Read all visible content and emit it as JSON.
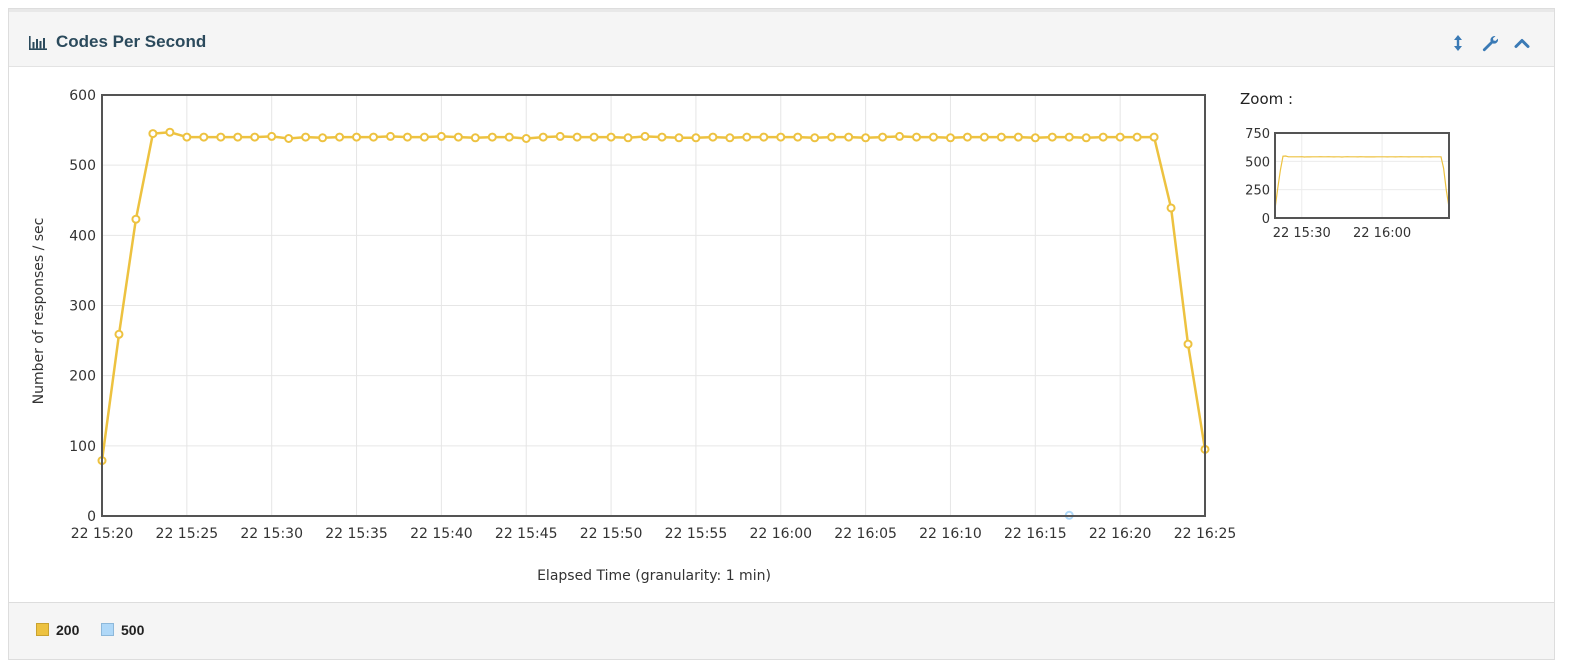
{
  "panel": {
    "title": "Codes Per Second",
    "tools": [
      {
        "name": "expand",
        "icon": "vertical-arrows-icon"
      },
      {
        "name": "settings",
        "icon": "wrench-icon"
      },
      {
        "name": "collapse",
        "icon": "chevron-up-icon"
      }
    ]
  },
  "zoom": {
    "label": "Zoom :",
    "y_ticks": [
      "750",
      "500",
      "250",
      "0"
    ],
    "x_ticks": [
      "22 15:30",
      "22 16:00"
    ]
  },
  "legend": [
    {
      "label": "200",
      "color": "#EDC240"
    },
    {
      "label": "500",
      "color": "#AFD8F8"
    }
  ],
  "chart_data": {
    "type": "line",
    "xlabel": "Elapsed Time (granularity: 1 min)",
    "ylabel": "Number of responses / sec",
    "x_tick_labels": [
      "22 15:20",
      "22 15:25",
      "22 15:30",
      "22 15:35",
      "22 15:40",
      "22 15:45",
      "22 15:50",
      "22 15:55",
      "22 16:00",
      "22 16:05",
      "22 16:10",
      "22 16:15",
      "22 16:20",
      "22 16:25"
    ],
    "y_tick_labels": [
      "0",
      "100",
      "200",
      "300",
      "400",
      "500",
      "600"
    ],
    "xlim_minutes_of_hour_15": [
      20,
      85
    ],
    "ylim": [
      0,
      600
    ],
    "grid": true,
    "series": [
      {
        "name": "200",
        "color": "#EDC240",
        "x_start": "22 15:20",
        "x_step_min": 1,
        "values": [
          79,
          259,
          423,
          545,
          547,
          540,
          540,
          540,
          540,
          540,
          541,
          538,
          540,
          539,
          540,
          540,
          540,
          541,
          540,
          540,
          541,
          540,
          539,
          540,
          540,
          538,
          540,
          541,
          540,
          540,
          540,
          539,
          541,
          540,
          539,
          539,
          540,
          539,
          540,
          540,
          540,
          540,
          539,
          540,
          540,
          539,
          540,
          541,
          540,
          540,
          539,
          540,
          540,
          540,
          540,
          539,
          540,
          540,
          539,
          540,
          540,
          540,
          540,
          439,
          245,
          95
        ]
      },
      {
        "name": "500",
        "color": "#AFD8F8",
        "points": [
          {
            "x": "22 16:17",
            "y": 1
          }
        ]
      }
    ]
  }
}
